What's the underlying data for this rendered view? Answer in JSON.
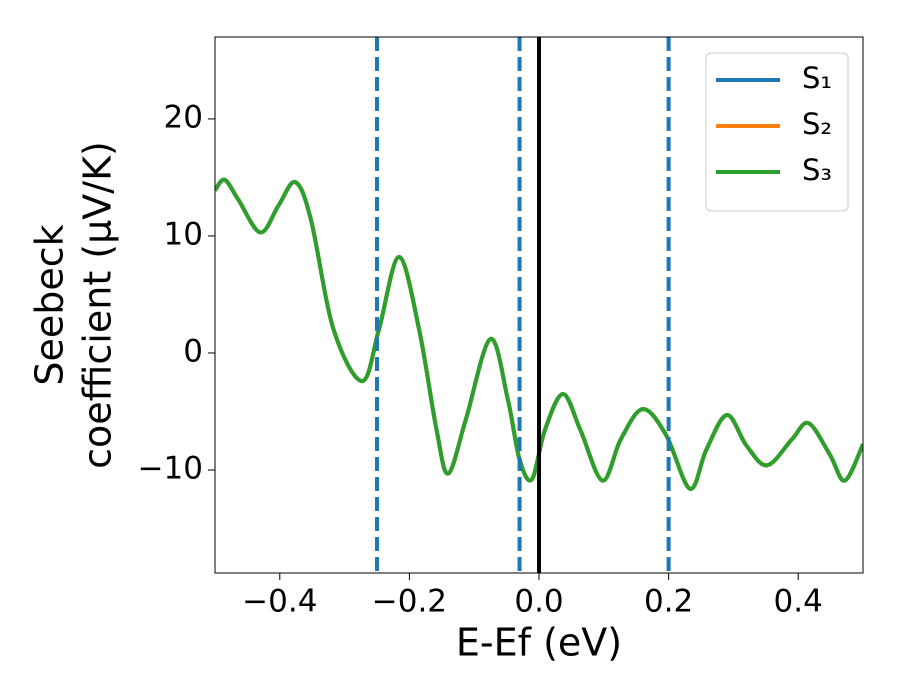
{
  "chart_data": {
    "type": "line",
    "xlabel": "E-Ef (eV)",
    "ylabel": [
      "Seebeck",
      "coefficient  (μV/K)"
    ],
    "x": [
      -0.5,
      -0.485,
      -0.464,
      -0.43,
      -0.402,
      -0.376,
      -0.352,
      -0.317,
      -0.273,
      -0.247,
      -0.216,
      -0.185,
      -0.158,
      -0.14,
      -0.113,
      -0.075,
      -0.048,
      -0.03,
      -0.011,
      0.009,
      0.037,
      0.064,
      0.098,
      0.126,
      0.16,
      0.196,
      0.233,
      0.258,
      0.29,
      0.32,
      0.352,
      0.39,
      0.416,
      0.449,
      0.472,
      0.5
    ],
    "series": [
      {
        "name": "S₁",
        "color": "#1f77b4",
        "values": [
          13.9,
          14.8,
          13.1,
          10.3,
          12.6,
          14.6,
          11.4,
          2.0,
          -2.4,
          2.0,
          8.2,
          2.0,
          -6.6,
          -10.3,
          -5.7,
          1.2,
          -4.0,
          -9.1,
          -10.8,
          -6.6,
          -3.5,
          -6.6,
          -10.9,
          -7.4,
          -4.8,
          -7.0,
          -11.6,
          -8.3,
          -5.3,
          -7.9,
          -9.6,
          -7.4,
          -6.0,
          -8.7,
          -10.9,
          -7.8
        ]
      },
      {
        "name": "S₂",
        "color": "#ff7f0e",
        "values": [
          13.9,
          14.8,
          13.1,
          10.3,
          12.6,
          14.6,
          11.4,
          2.0,
          -2.4,
          2.0,
          8.2,
          2.0,
          -6.6,
          -10.3,
          -5.7,
          1.2,
          -4.0,
          -9.1,
          -10.8,
          -6.6,
          -3.5,
          -6.6,
          -10.9,
          -7.4,
          -4.8,
          -7.0,
          -11.6,
          -8.3,
          -5.3,
          -7.9,
          -9.6,
          -7.4,
          -6.0,
          -8.7,
          -10.9,
          -7.8
        ]
      },
      {
        "name": "S₃",
        "color": "#2ca02c",
        "values": [
          13.9,
          14.8,
          13.1,
          10.3,
          12.6,
          14.6,
          11.4,
          2.0,
          -2.4,
          2.0,
          8.2,
          2.0,
          -6.6,
          -10.3,
          -5.7,
          1.2,
          -4.0,
          -9.1,
          -10.8,
          -6.6,
          -3.5,
          -6.6,
          -10.9,
          -7.4,
          -4.8,
          -7.0,
          -11.6,
          -8.3,
          -5.3,
          -7.9,
          -9.6,
          -7.4,
          -6.0,
          -8.7,
          -10.9,
          -7.8
        ]
      }
    ],
    "vlines": [
      {
        "x": -0.25,
        "color": "#1f77b4",
        "style": "dashed"
      },
      {
        "x": -0.03,
        "color": "#1f77b4",
        "style": "dashed"
      },
      {
        "x": 0.2,
        "color": "#1f77b4",
        "style": "dashed"
      },
      {
        "x": 0,
        "color": "#000000",
        "style": "solid"
      }
    ],
    "xlim": [
      -0.5,
      0.5
    ],
    "ylim": [
      -18.8,
      27
    ],
    "xticks": [
      {
        "value": -0.4,
        "label": "−0.4"
      },
      {
        "value": -0.2,
        "label": "−0.2"
      },
      {
        "value": 0,
        "label": "0.0"
      },
      {
        "value": 0.2,
        "label": "0.2"
      },
      {
        "value": 0.4,
        "label": "0.4"
      }
    ],
    "yticks": [
      {
        "value": -10,
        "label": "−10"
      },
      0,
      10,
      20
    ],
    "legend": "upper right"
  }
}
